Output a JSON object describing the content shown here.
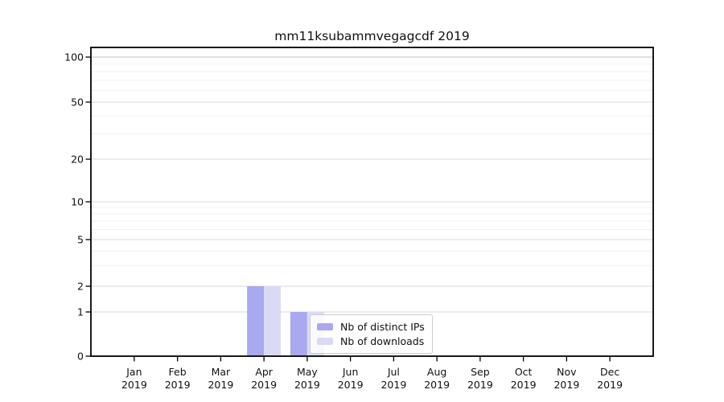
{
  "chart_data": {
    "type": "bar",
    "title": "mm11ksubammvegagcdf 2019",
    "categories": [
      "Jan",
      "Feb",
      "Mar",
      "Apr",
      "May",
      "Jun",
      "Jul",
      "Aug",
      "Sep",
      "Oct",
      "Nov",
      "Dec"
    ],
    "year_label": "2019",
    "series": [
      {
        "name": "Nb of distinct IPs",
        "color": "#a9a9ef",
        "values": [
          0,
          0,
          0,
          2,
          1,
          0,
          0,
          0,
          0,
          0,
          0,
          0
        ]
      },
      {
        "name": "Nb of downloads",
        "color": "#dadaf7",
        "values": [
          0,
          0,
          0,
          2,
          1,
          0,
          0,
          0,
          0,
          0,
          0,
          0
        ]
      }
    ],
    "yticks": [
      0,
      1,
      2,
      5,
      10,
      20,
      50,
      100
    ],
    "ylim": [
      0,
      110
    ],
    "yscale": "log-like (0,1,2,5,10,20,50,100)",
    "grid": "horizontal major and log-minor gridlines",
    "legend_position": "lower center, inside plot",
    "colors": {
      "bar_distinct_ips": "#a9a9ef",
      "bar_downloads": "#dadaf7",
      "gridline_major": "#d9d9d9",
      "gridline_top": "#c3c3c3",
      "gridline_minor": "#f1f1f1",
      "axis": "#000000"
    }
  }
}
